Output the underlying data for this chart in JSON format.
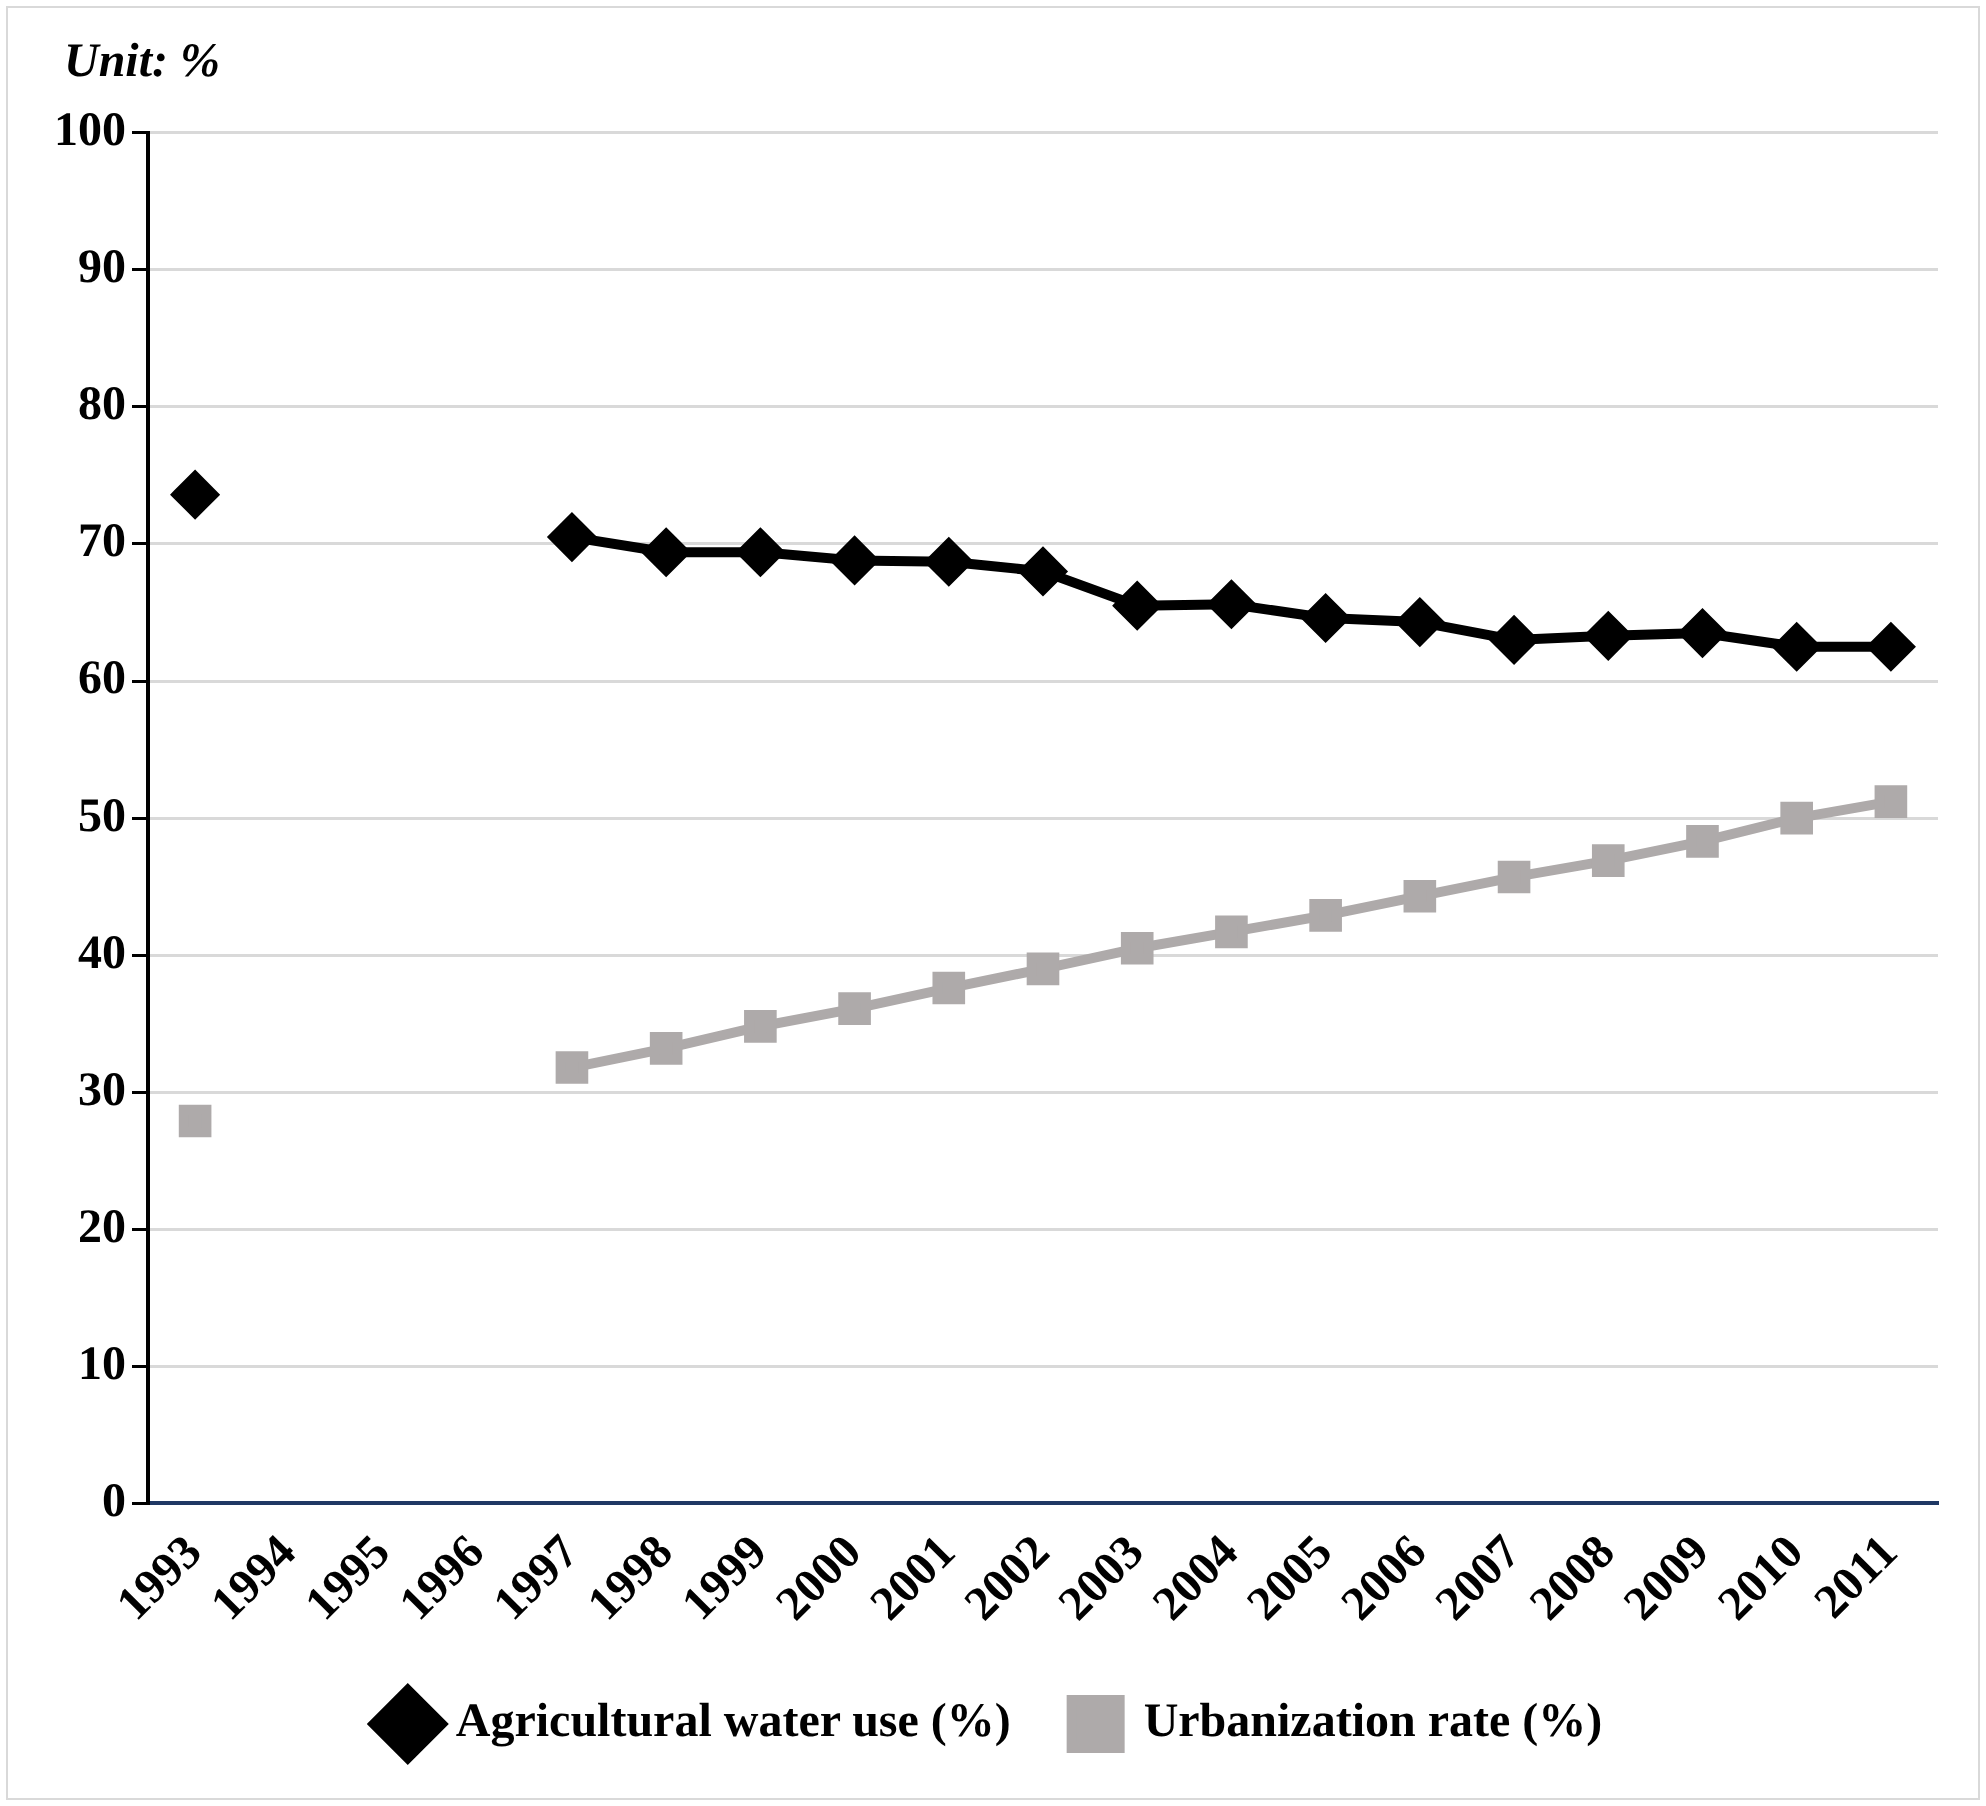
{
  "chart_data": {
    "type": "line",
    "ylabel": "Unit: %",
    "categories": [
      "1993",
      "1994",
      "1995",
      "1996",
      "1997",
      "1998",
      "1999",
      "2000",
      "2001",
      "2002",
      "2003",
      "2004",
      "2005",
      "2006",
      "2007",
      "2008",
      "2009",
      "2010",
      "2011"
    ],
    "series": [
      {
        "name": "Agricultural water use (%)",
        "color": "#000000",
        "marker": "diamond",
        "values": [
          73.6,
          null,
          null,
          null,
          70.5,
          69.4,
          69.4,
          68.8,
          68.7,
          68.0,
          65.5,
          65.6,
          64.6,
          64.3,
          63.0,
          63.3,
          63.5,
          62.5,
          62.5
        ]
      },
      {
        "name": "Urbanization rate (%)",
        "color": "#aeaaaa",
        "marker": "square",
        "values": [
          27.9,
          null,
          null,
          null,
          31.8,
          33.2,
          34.8,
          36.1,
          37.6,
          39.0,
          40.5,
          41.7,
          42.9,
          44.3,
          45.7,
          46.9,
          48.3,
          50.0,
          51.2
        ]
      }
    ],
    "ylim": [
      0,
      100
    ],
    "yticks": [
      0,
      10,
      20,
      30,
      40,
      50,
      60,
      70,
      80,
      90,
      100
    ],
    "grid": "y",
    "legend": "bottom",
    "line_style": "solid"
  }
}
